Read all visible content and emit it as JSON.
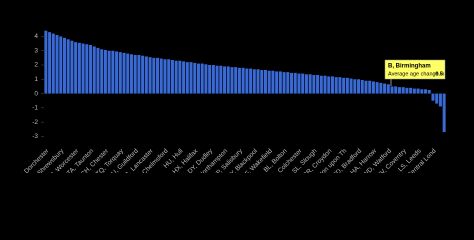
{
  "chart_data": {
    "type": "bar",
    "categories": [
      "DT, Dorchester",
      null,
      null,
      null,
      "SY, Shrewsbury",
      null,
      null,
      null,
      "WR, Worcester",
      null,
      null,
      null,
      "TA, Taunton",
      null,
      null,
      null,
      "CH, Chester",
      null,
      null,
      null,
      "TQ, Torquay",
      null,
      null,
      null,
      "GU, Guildford",
      null,
      null,
      null,
      "LA, Lancaster",
      null,
      null,
      null,
      "CM, Chelmsford",
      null,
      null,
      null,
      "HU, Hull",
      null,
      null,
      null,
      "HX, Halifax",
      null,
      null,
      null,
      "DY, Dudley",
      null,
      null,
      null,
      "NN, Northampton",
      null,
      null,
      null,
      "SP, Salisbury",
      null,
      null,
      null,
      "FY, Blackpool",
      null,
      null,
      null,
      "WF, Wakefield",
      null,
      null,
      null,
      "BL, Bolton",
      null,
      null,
      null,
      "CO, Colchester",
      null,
      null,
      null,
      "SL, Slough",
      null,
      null,
      null,
      "CR, Croydon",
      null,
      null,
      null,
      "KT, Kingston upon Th",
      null,
      null,
      null,
      "BD, Bradford",
      null,
      null,
      null,
      "HA, Harrow",
      null,
      null,
      null,
      "WD, Watford",
      "B, Birmingham",
      null,
      null,
      "CV, Coventry",
      null,
      null,
      null,
      "LS, Leeds",
      null,
      null,
      null,
      "EC, East Central Lond",
      null,
      null,
      null
    ],
    "values": [
      4.4,
      4.3,
      4.2,
      4.1,
      4.0,
      3.9,
      3.8,
      3.7,
      3.6,
      3.55,
      3.5,
      3.45,
      3.4,
      3.3,
      3.2,
      3.1,
      3.05,
      3.0,
      3.0,
      2.95,
      2.9,
      2.85,
      2.8,
      2.75,
      2.7,
      2.7,
      2.65,
      2.6,
      2.55,
      2.5,
      2.5,
      2.45,
      2.4,
      2.4,
      2.35,
      2.3,
      2.3,
      2.25,
      2.2,
      2.2,
      2.15,
      2.1,
      2.1,
      2.05,
      2.0,
      2.0,
      1.95,
      1.95,
      1.9,
      1.9,
      1.85,
      1.85,
      1.8,
      1.8,
      1.75,
      1.75,
      1.7,
      1.7,
      1.65,
      1.65,
      1.6,
      1.6,
      1.55,
      1.55,
      1.5,
      1.5,
      1.45,
      1.45,
      1.4,
      1.4,
      1.35,
      1.35,
      1.3,
      1.3,
      1.25,
      1.25,
      1.2,
      1.2,
      1.15,
      1.15,
      1.1,
      1.1,
      1.05,
      1.0,
      1.0,
      0.95,
      0.9,
      0.9,
      0.85,
      0.8,
      0.75,
      0.7,
      0.65,
      0.5,
      0.5,
      0.45,
      0.45,
      0.4,
      0.4,
      0.35,
      0.35,
      0.3,
      0.3,
      0.25,
      -0.5,
      -0.7,
      -0.9,
      -2.7
    ],
    "color": "#3a6ad6",
    "tooltip_text": "Average age change in yrs:",
    "ylim": [
      -3.6,
      4.8
    ],
    "yticks": [
      4,
      3,
      2,
      1,
      0,
      -1,
      -2,
      -3
    ]
  }
}
